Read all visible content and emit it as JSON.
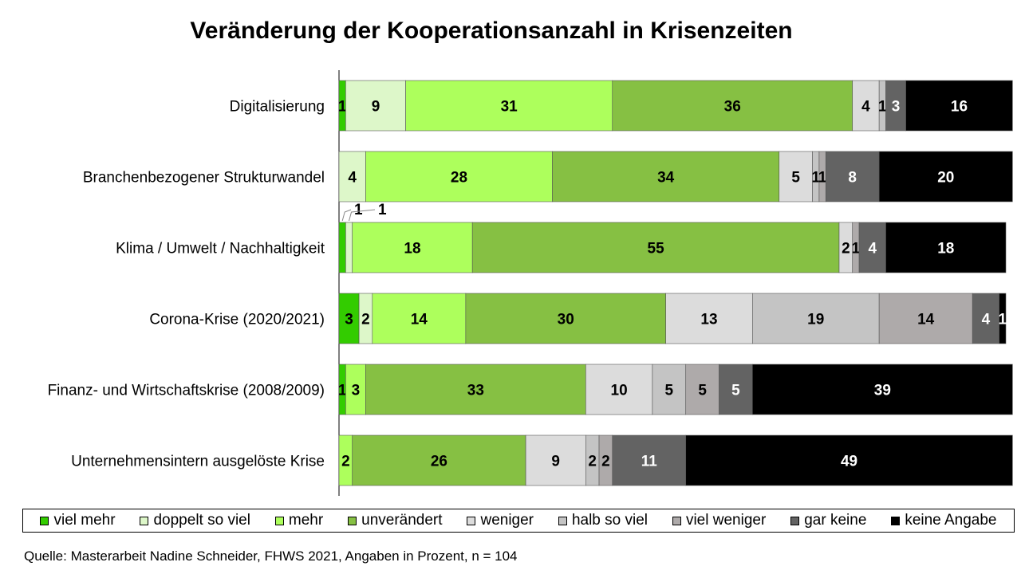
{
  "chart_data": {
    "type": "bar",
    "orientation": "horizontal",
    "stacked": true,
    "title": "Veränderung der Kooperationsanzahl in Krisenzeiten",
    "xlim": [
      0,
      100
    ],
    "grid": false,
    "legend_position": "bottom",
    "categories": [
      "Digitalisierung",
      "Branchenbezogener Strukturwandel",
      "Klima / Umwelt / Nachhaltigkeit",
      "Corona-Krise (2020/2021)",
      "Finanz- und Wirtschaftskrise (2008/2009)",
      "Unternehmensintern ausgelöste Krise"
    ],
    "series": [
      {
        "name": "viel mehr",
        "color": "#33cc00",
        "values": [
          1,
          0,
          1,
          3,
          1,
          0
        ]
      },
      {
        "name": "doppelt so viel",
        "color": "#ddf7c9",
        "values": [
          9,
          4,
          1,
          2,
          0,
          0
        ]
      },
      {
        "name": "mehr",
        "color": "#adff5c",
        "values": [
          31,
          28,
          18,
          14,
          3,
          2
        ]
      },
      {
        "name": "unverändert",
        "color": "#86c043",
        "values": [
          36,
          34,
          55,
          30,
          33,
          26
        ]
      },
      {
        "name": "weniger",
        "color": "#dcdcdc",
        "values": [
          4,
          5,
          2,
          13,
          10,
          9
        ]
      },
      {
        "name": "halb so viel",
        "color": "#c4c4c4",
        "values": [
          1,
          1,
          0,
          19,
          5,
          2
        ]
      },
      {
        "name": "viel weniger",
        "color": "#aeaaaa",
        "values": [
          0,
          1,
          1,
          14,
          5,
          2
        ]
      },
      {
        "name": "gar keine",
        "color": "#636363",
        "values": [
          3,
          8,
          4,
          4,
          5,
          11
        ]
      },
      {
        "name": "keine Angabe",
        "color": "#000000",
        "values": [
          16,
          20,
          18,
          1,
          39,
          49
        ]
      }
    ],
    "callout_labels": [
      {
        "category_index": 2,
        "series_index": 0,
        "text": "1"
      },
      {
        "category_index": 2,
        "series_index": 1,
        "text": "1"
      }
    ],
    "source": "Quelle: Masterarbeit Nadine Schneider, FHWS 2021, Angaben in Prozent, n = 104"
  }
}
